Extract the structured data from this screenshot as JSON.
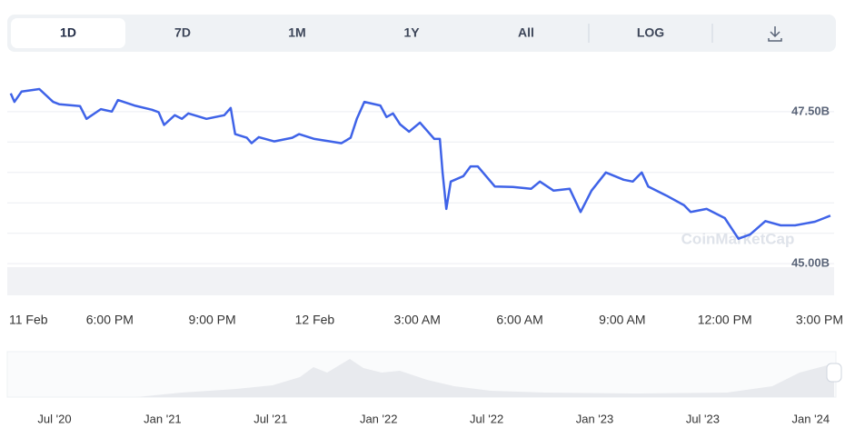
{
  "tabs": [
    "1D",
    "7D",
    "1M",
    "1Y",
    "All",
    "LOG"
  ],
  "watermark": "CoinMarketCap",
  "navigator_labels": [
    "Jul '20",
    "Jan '21",
    "Jul '21",
    "Jan '22",
    "Jul '22",
    "Jan '23",
    "Jul '23",
    "Jan '24"
  ],
  "chart_data": {
    "type": "line",
    "x": [
      15.1,
      15.21,
      15.42,
      15.94,
      16.34,
      16.53,
      17.13,
      17.32,
      17.74,
      18.06,
      18.24,
      18.72,
      19.24,
      19.43,
      19.59,
      19.9,
      20.11,
      20.3,
      20.83,
      21.35,
      21.54,
      21.67,
      22.01,
      22.15,
      22.36,
      22.81,
      23.34,
      23.54,
      23.99,
      24.78,
      25.05,
      25.23,
      25.45,
      25.92,
      26.1,
      26.29,
      26.5,
      26.76,
      27.08,
      27.5,
      27.66,
      27.74,
      27.85,
      27.98,
      28.35,
      28.56,
      28.77,
      29.27,
      29.8,
      30.33,
      30.59,
      30.99,
      31.46,
      31.78,
      32.1,
      32.52,
      33.04,
      33.31,
      33.57,
      33.76,
      34.29,
      34.81,
      35.0,
      35.47,
      36.0,
      36.4,
      36.74,
      37.19,
      37.64,
      38.06,
      38.64,
      38.91,
      39.09
    ],
    "series": [
      {
        "color": "#3f63e8",
        "values": [
          47.8,
          47.66,
          47.83,
          47.87,
          47.66,
          47.62,
          47.59,
          47.38,
          47.54,
          47.5,
          47.69,
          47.6,
          47.53,
          47.49,
          47.28,
          47.44,
          47.38,
          47.47,
          47.38,
          47.44,
          47.56,
          47.13,
          47.07,
          46.98,
          47.08,
          47.01,
          47.07,
          47.13,
          47.05,
          46.98,
          47.07,
          47.38,
          47.66,
          47.6,
          47.41,
          47.47,
          47.29,
          47.17,
          47.32,
          47.05,
          47.05,
          46.5,
          45.9,
          46.35,
          46.44,
          46.6,
          46.6,
          46.27,
          46.26,
          46.23,
          46.35,
          46.2,
          46.23,
          45.85,
          46.2,
          46.5,
          46.38,
          46.35,
          46.5,
          46.27,
          46.12,
          45.96,
          45.85,
          45.9,
          45.75,
          45.41,
          45.48,
          45.7,
          45.63,
          45.63,
          45.69,
          45.75,
          45.79
        ]
      }
    ],
    "xlim": [
      15.0,
      39.2
    ],
    "xticks": [
      {
        "value": 15,
        "label": "11 Feb"
      },
      {
        "value": 18,
        "label": "6:00 PM"
      },
      {
        "value": 21,
        "label": "9:00 PM"
      },
      {
        "value": 24,
        "label": "12 Feb"
      },
      {
        "value": 27,
        "label": "3:00 AM"
      },
      {
        "value": 30,
        "label": "6:00 AM"
      },
      {
        "value": 33,
        "label": "9:00 AM"
      },
      {
        "value": 36,
        "label": "12:00 PM"
      },
      {
        "value": 39,
        "label": "3:00 PM"
      }
    ],
    "ylim": [
      44.48,
      48.02
    ],
    "yticks": [
      {
        "value": 47.5,
        "label": "47.50B"
      },
      {
        "value": 45,
        "label": "45.00B"
      }
    ],
    "grid": true
  }
}
